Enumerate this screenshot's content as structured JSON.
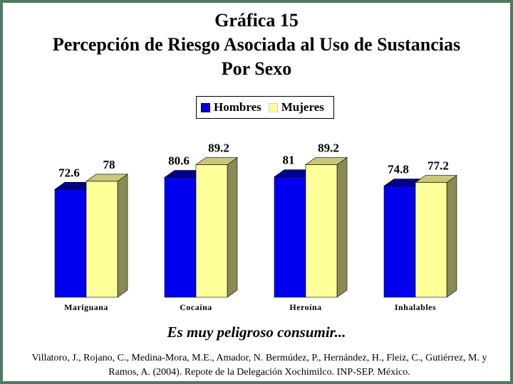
{
  "title": {
    "line1": "Gráfica 15",
    "line2": "Percepción de Riesgo Asociada al Uso de Sustancias",
    "line3": "Por Sexo"
  },
  "legend": {
    "hombres": "Hombres",
    "mujeres": "Mujeres"
  },
  "subtitle": "Es muy peligroso consumir...",
  "citation": "Villatoro, J., Rojano, C., Medina-Mora, M.E., Amador, N. Bermúdez, P., Hernández, H., Fleiz, C., Gutiérrez, M. y Ramos, A. (2004). Repote de la Delegación Xochimilco. INP-SEP. México.",
  "colors": {
    "hombres": "#0000ee",
    "mujeres": "#ffff99",
    "frame": "#4e7a5f"
  },
  "chart_data": {
    "type": "bar",
    "categories": [
      "Mariguana",
      "Cocaína",
      "Heroína",
      "Inhalables"
    ],
    "series": [
      {
        "name": "Hombres",
        "values": [
          72.6,
          80.6,
          81,
          74.8
        ]
      },
      {
        "name": "Mujeres",
        "values": [
          78,
          89.2,
          89.2,
          77.2
        ]
      }
    ],
    "value_labels": [
      [
        "72.6",
        "78"
      ],
      [
        "80.6",
        "89.2"
      ],
      [
        "81",
        "89.2"
      ],
      [
        "74.8",
        "77.2"
      ]
    ],
    "ylim": [
      0,
      100
    ],
    "grid": false,
    "legend_position": "top-center"
  }
}
